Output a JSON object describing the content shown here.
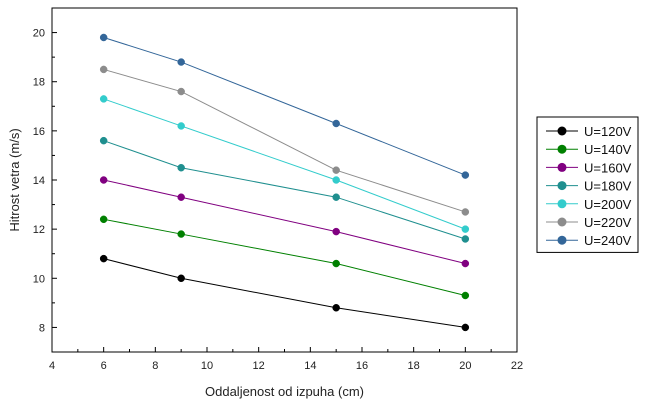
{
  "chart_data": {
    "type": "line",
    "xlabel": "Oddaljenost od izpuha (cm)",
    "ylabel": "Hitrost vetra (m/s)",
    "xlim": [
      4,
      22
    ],
    "ylim": [
      7,
      21
    ],
    "xticks": [
      4,
      6,
      8,
      10,
      12,
      14,
      16,
      18,
      20,
      22
    ],
    "yticks": [
      8,
      10,
      12,
      14,
      16,
      18,
      20
    ],
    "grid": false,
    "legend_position": "right",
    "x": [
      6,
      9,
      15,
      20
    ],
    "series": [
      {
        "name": "U=120V",
        "color": "#000000",
        "values": [
          10.8,
          10.0,
          8.8,
          8.0
        ]
      },
      {
        "name": "U=140V",
        "color": "#008000",
        "values": [
          12.4,
          11.8,
          10.6,
          9.3
        ]
      },
      {
        "name": "U=160V",
        "color": "#800080",
        "values": [
          14.0,
          13.3,
          11.9,
          10.6
        ]
      },
      {
        "name": "U=180V",
        "color": "#1f8f8f",
        "values": [
          15.6,
          14.5,
          13.3,
          11.6
        ]
      },
      {
        "name": "U=200V",
        "color": "#33cccc",
        "values": [
          17.3,
          16.2,
          14.0,
          12.0
        ]
      },
      {
        "name": "U=220V",
        "color": "#8c8c8c",
        "values": [
          18.5,
          17.6,
          14.4,
          12.7
        ]
      },
      {
        "name": "U=240V",
        "color": "#336699",
        "values": [
          19.8,
          18.8,
          16.3,
          14.2
        ]
      }
    ]
  }
}
